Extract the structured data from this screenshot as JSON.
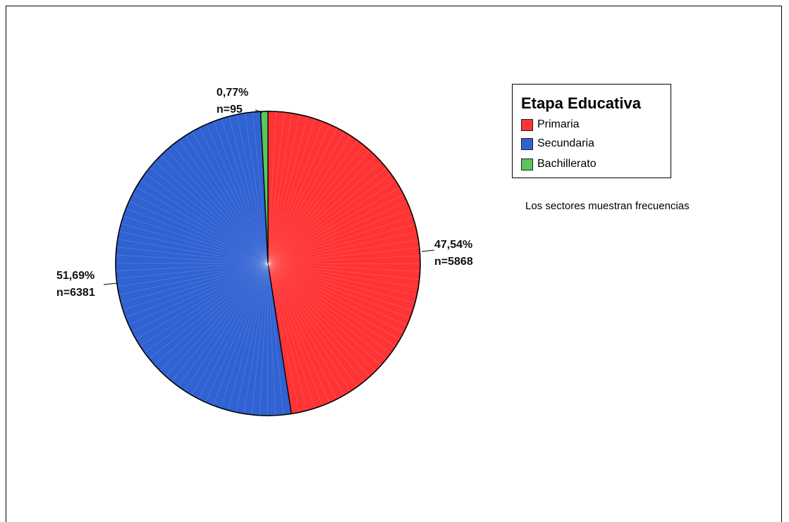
{
  "chart_data": {
    "type": "pie",
    "legend_title": "Etapa Educativa",
    "legend_position": "top-right",
    "note": "Los sectores muestran frecuencias",
    "slices": [
      {
        "category": "Primaria",
        "n": 5868,
        "percent": 47.54,
        "percent_label": "47,54%",
        "n_label": "n=5868",
        "color": "#fe3334"
      },
      {
        "category": "Secundaria",
        "n": 6381,
        "percent": 51.69,
        "percent_label": "51,69%",
        "n_label": "n=6381",
        "color": "#3162d2"
      },
      {
        "category": "Bachillerato",
        "n": 95,
        "percent": 0.77,
        "percent_label": "0,77%",
        "n_label": "n=95",
        "color": "#5ac45e"
      }
    ]
  }
}
